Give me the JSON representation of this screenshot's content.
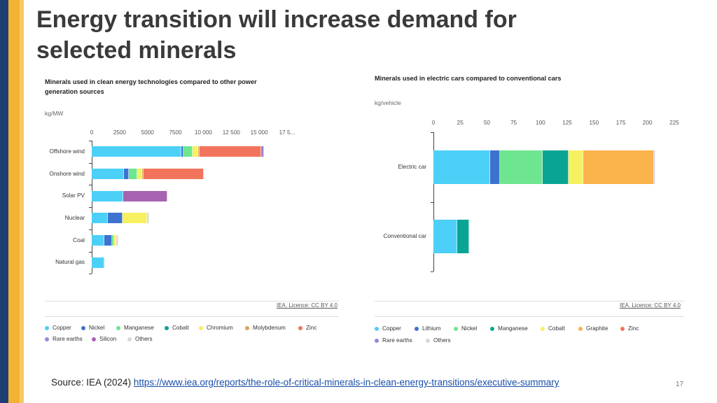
{
  "slide": {
    "title": "Energy transition will increase demand for selected minerals",
    "source_label": "Source: IEA (2024)",
    "source_link": "https://www.iea.org/reports/the-role-of-critical-minerals-in-clean-energy-transitions/executive-summary",
    "page_number": "17"
  },
  "colors": {
    "brand_blue": "#1f3f73",
    "brand_gold": "#f2b233",
    "Copper": "#4cd0f7",
    "Lithium": "#3e72cf",
    "Nickel_left": "#3e72cf",
    "Nickel_right": "#6ee68f",
    "Manganese_left": "#6ee68f",
    "Manganese_right": "#0aa592",
    "Cobalt_left": "#0aa592",
    "Cobalt_right": "#f7f060",
    "Chromium": "#f7f060",
    "Molybdenum": "#d9a65a",
    "Graphite": "#fbb34c",
    "Zinc": "#f2745c",
    "Rare earths": "#9b86d9",
    "Silicon": "#a764b0",
    "Others": "#d8d8d8"
  },
  "chart_data": [
    {
      "type": "bar",
      "orientation": "horizontal",
      "stacked": true,
      "title": "Minerals used in clean energy technologies compared to other power generation sources",
      "unit": "kg/MW",
      "xlim": [
        0,
        17500
      ],
      "tick_labels": [
        "0",
        "2500",
        "5000",
        "7500",
        "10 000",
        "12 500",
        "15 000",
        "17 5..."
      ],
      "categories": [
        "Offshore wind",
        "Onshore wind",
        "Solar PV",
        "Nuclear",
        "Coal",
        "Natural gas"
      ],
      "series": [
        {
          "name": "Copper",
          "values": [
            8000,
            2900,
            2800,
            1470,
            1150,
            1100
          ]
        },
        {
          "name": "Nickel",
          "values": [
            240,
            400,
            0,
            1300,
            700,
            0
          ]
        },
        {
          "name": "Manganese",
          "values": [
            800,
            750,
            0,
            0,
            150,
            0
          ]
        },
        {
          "name": "Cobalt",
          "values": [
            0,
            0,
            0,
            0,
            0,
            0
          ]
        },
        {
          "name": "Chromium",
          "values": [
            525,
            470,
            0,
            2200,
            200,
            0
          ]
        },
        {
          "name": "Molybdenum",
          "values": [
            110,
            100,
            0,
            70,
            70,
            0
          ]
        },
        {
          "name": "Zinc",
          "values": [
            5500,
            5400,
            0,
            0,
            0,
            0
          ]
        },
        {
          "name": "Rare earths",
          "values": [
            240,
            0,
            0,
            0,
            0,
            0
          ]
        },
        {
          "name": "Silicon",
          "values": [
            0,
            0,
            4000,
            0,
            0,
            0
          ]
        },
        {
          "name": "Others",
          "values": [
            0,
            0,
            0,
            110,
            100,
            60
          ]
        }
      ],
      "license": "IEA. Licence: CC BY 4.0",
      "legend": [
        "Copper",
        "Nickel",
        "Manganese",
        "Cobalt",
        "Chromium",
        "Molybdenum",
        "Zinc",
        "Rare earths",
        "Silicon",
        "Others"
      ],
      "legend_placement": "bottom"
    },
    {
      "type": "bar",
      "orientation": "horizontal",
      "stacked": true,
      "title": "Minerals used in electric cars compared to conventional cars",
      "unit": "kg/vehicle",
      "xlim": [
        0,
        225
      ],
      "tick_labels": [
        "0",
        "25",
        "50",
        "75",
        "100",
        "125",
        "150",
        "175",
        "200",
        "225"
      ],
      "categories": [
        "Electric car",
        "Conventional car"
      ],
      "series": [
        {
          "name": "Copper",
          "values": [
            53.2,
            22.3
          ]
        },
        {
          "name": "Lithium",
          "values": [
            8.9,
            0
          ]
        },
        {
          "name": "Nickel",
          "values": [
            39.9,
            0
          ]
        },
        {
          "name": "Manganese",
          "values": [
            24.5,
            11.2
          ]
        },
        {
          "name": "Cobalt",
          "values": [
            13.3,
            0
          ]
        },
        {
          "name": "Graphite",
          "values": [
            66.3,
            0
          ]
        },
        {
          "name": "Zinc",
          "values": [
            0.1,
            0
          ]
        },
        {
          "name": "Rare earths",
          "values": [
            0.5,
            0
          ]
        },
        {
          "name": "Others",
          "values": [
            0.3,
            0.3
          ]
        }
      ],
      "license": "IEA. Licence: CC BY 4.0",
      "legend": [
        "Copper",
        "Lithium",
        "Nickel",
        "Manganese",
        "Cobalt",
        "Graphite",
        "Zinc",
        "Rare earths",
        "Others"
      ],
      "legend_placement": "bottom"
    }
  ]
}
